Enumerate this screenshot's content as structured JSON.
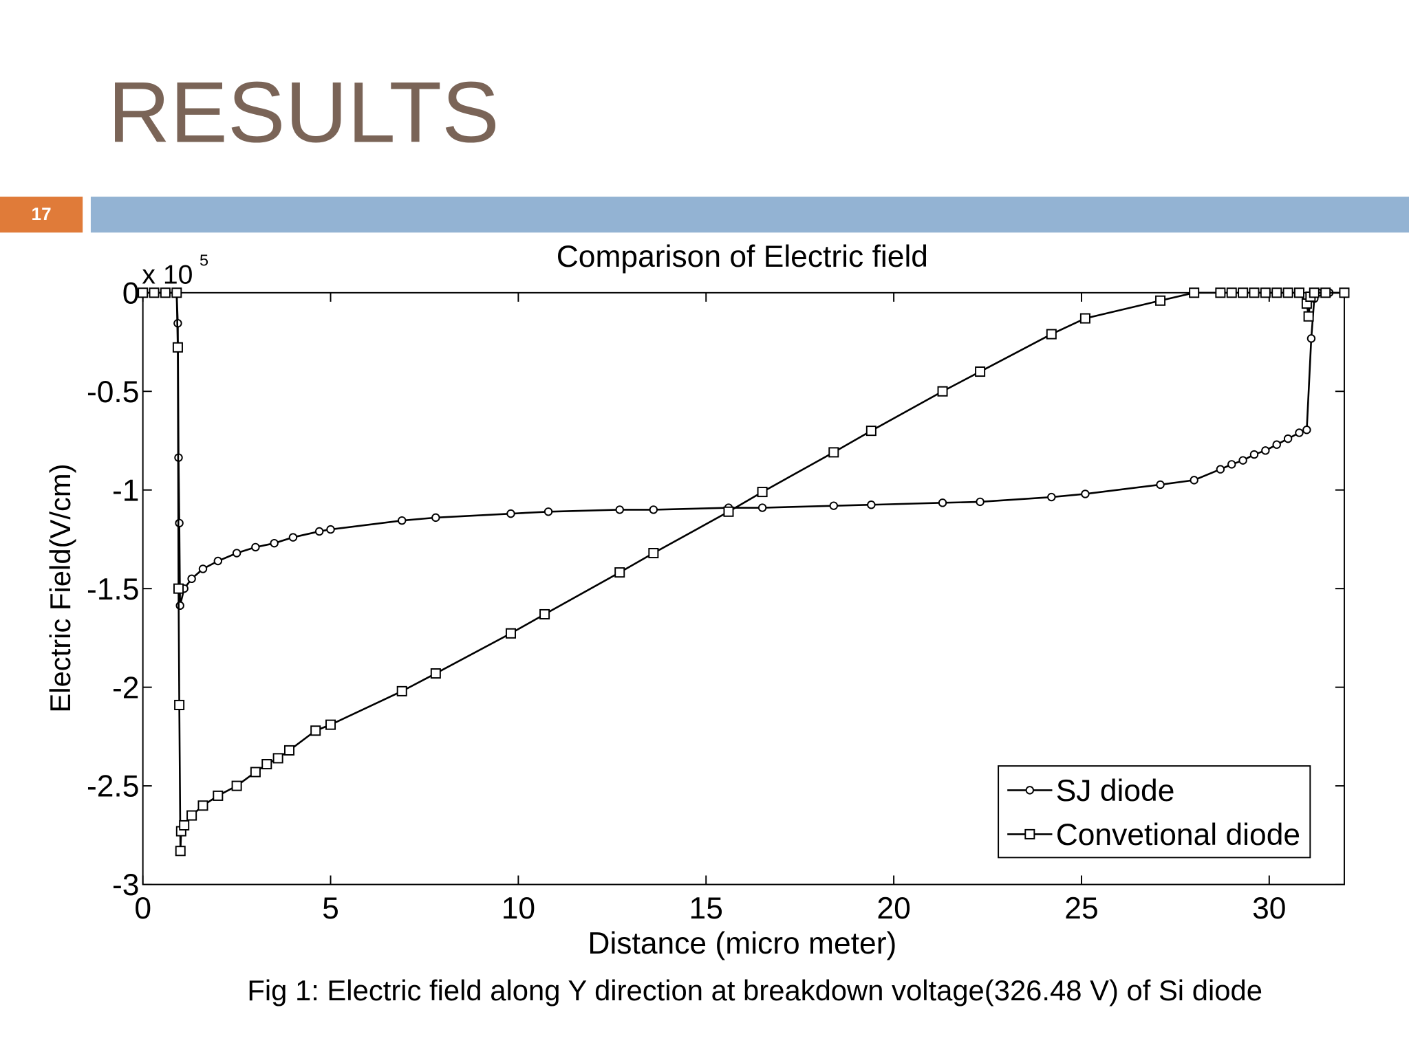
{
  "slide": {
    "title": "RESULTS",
    "page_number": "17",
    "caption": "Fig 1: Electric field along Y direction at breakdown voltage(326.48 V) of Si diode"
  },
  "chart_data": {
    "type": "line",
    "title": "Comparison of Electric field",
    "x_label": "Distance (micro meter)",
    "y_label": "Electric Field(V/cm)",
    "y_multiplier": "x 10",
    "y_multiplier_exponent": "5",
    "xlim": [
      0,
      32
    ],
    "ylim": [
      -3,
      0
    ],
    "xticks": [
      0,
      5,
      10,
      15,
      20,
      25,
      30
    ],
    "yticks": [
      0,
      -0.5,
      -1,
      -1.5,
      -2,
      -2.5,
      -3
    ],
    "legend": "lower right",
    "series": [
      {
        "name": "SJ diode",
        "color": "#000000",
        "marker": "circle",
        "x": [
          0,
          0.3,
          0.6,
          0.9,
          0.93,
          0.95,
          0.97,
          0.99,
          1.1,
          1.3,
          1.6,
          2.0,
          2.5,
          3.0,
          3.5,
          4.0,
          4.7,
          5.0,
          6.9,
          7.8,
          9.8,
          10.8,
          12.7,
          13.6,
          15.6,
          16.5,
          18.4,
          19.4,
          21.3,
          22.3,
          24.2,
          25.1,
          27.1,
          28.0,
          28.7,
          29.0,
          29.3,
          29.6,
          29.9,
          30.2,
          30.5,
          30.8,
          31.0,
          31.12,
          31.2,
          31.3,
          31.6,
          32
        ],
        "values": [
          0,
          0,
          0,
          0,
          -0.155,
          -0.836,
          -1.168,
          -1.586,
          -1.5,
          -1.45,
          -1.4,
          -1.36,
          -1.32,
          -1.29,
          -1.27,
          -1.24,
          -1.21,
          -1.2,
          -1.155,
          -1.14,
          -1.12,
          -1.11,
          -1.1,
          -1.1,
          -1.09,
          -1.09,
          -1.08,
          -1.075,
          -1.065,
          -1.06,
          -1.036,
          -1.02,
          -0.973,
          -0.95,
          -0.895,
          -0.87,
          -0.85,
          -0.82,
          -0.8,
          -0.77,
          -0.74,
          -0.71,
          -0.695,
          -0.232,
          -0.03,
          0,
          0,
          0
        ]
      },
      {
        "name": "Convetional diode",
        "color": "#000000",
        "marker": "square",
        "x": [
          0,
          0.3,
          0.6,
          0.9,
          0.93,
          0.95,
          0.97,
          1.0,
          1.02,
          1.1,
          1.3,
          1.6,
          2.0,
          2.5,
          3.0,
          3.3,
          3.6,
          3.9,
          4.6,
          5.0,
          6.9,
          7.8,
          9.8,
          10.7,
          12.7,
          13.6,
          15.6,
          16.5,
          18.4,
          19.4,
          21.3,
          22.3,
          24.2,
          25.1,
          27.1,
          28.0,
          28.7,
          29.0,
          29.3,
          29.6,
          29.9,
          30.2,
          30.5,
          30.8,
          31.0,
          31.05,
          31.1,
          31.2,
          31.5,
          32
        ],
        "values": [
          0,
          0,
          0,
          0,
          -0.277,
          -1.5,
          -2.09,
          -2.83,
          -2.73,
          -2.7,
          -2.65,
          -2.6,
          -2.55,
          -2.5,
          -2.43,
          -2.39,
          -2.36,
          -2.32,
          -2.22,
          -2.19,
          -2.02,
          -1.93,
          -1.727,
          -1.63,
          -1.418,
          -1.32,
          -1.11,
          -1.01,
          -0.809,
          -0.7,
          -0.5,
          -0.4,
          -0.21,
          -0.13,
          -0.04,
          0,
          0,
          0,
          0,
          0,
          0,
          0,
          0,
          0,
          -0.055,
          -0.12,
          -0.02,
          0,
          0,
          0
        ]
      }
    ]
  }
}
